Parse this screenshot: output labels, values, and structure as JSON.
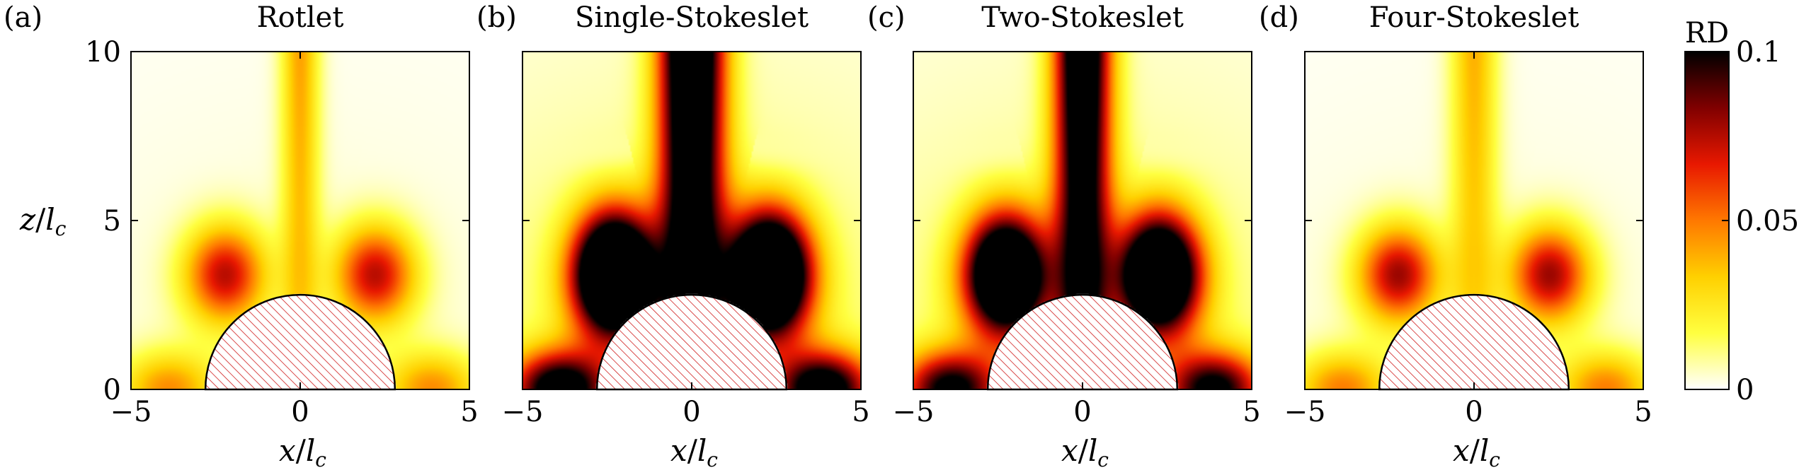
{
  "chart_data": {
    "type": "heatmap",
    "panels": [
      {
        "label": "(a)",
        "title": "Rotlet",
        "intensity": 0.45,
        "center_width": 0.35,
        "lobe_intensity": 0.7
      },
      {
        "label": "(b)",
        "title": "Single-Stokeslet",
        "intensity": 1.6,
        "center_width": 1.0,
        "lobe_intensity": 1.8
      },
      {
        "label": "(c)",
        "title": "Two-Stokeslet",
        "intensity": 1.45,
        "center_width": 0.8,
        "lobe_intensity": 1.6
      },
      {
        "label": "(d)",
        "title": "Four-Stokeslet",
        "intensity": 0.42,
        "center_width": 0.55,
        "lobe_intensity": 0.75
      }
    ],
    "xlabel_main": "x",
    "xlabel_sub": "c",
    "ylabel_main": "z",
    "ylabel_sub": "c",
    "xlim": [
      -5,
      5
    ],
    "ylim": [
      0,
      10
    ],
    "xticks": [
      -5,
      0,
      5
    ],
    "xtick_labels": [
      "−5",
      "0",
      "5"
    ],
    "yticks": [
      0,
      5,
      10
    ],
    "ytick_labels": [
      "0",
      "5",
      "10"
    ],
    "obstacle_radius": 2.8,
    "colorbar": {
      "label": "RD",
      "range": [
        0,
        0.1
      ],
      "ticks": [
        0,
        0.05,
        0.1
      ],
      "tick_labels": [
        "0",
        "0.05",
        "0.1"
      ],
      "colormap": [
        "#ffffff",
        "#ffff40",
        "#ffd000",
        "#ff7800",
        "#e81800",
        "#800000",
        "#000000"
      ]
    }
  }
}
